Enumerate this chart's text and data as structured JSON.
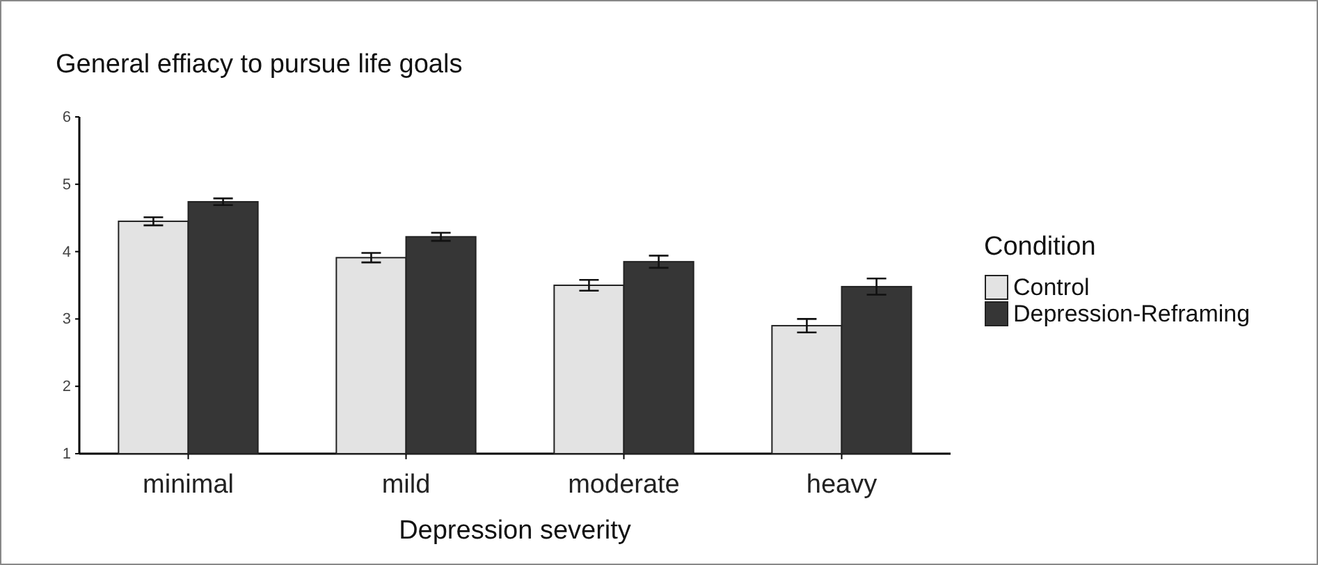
{
  "chart_data": {
    "type": "bar",
    "title": "General effiacy to pursue life goals",
    "xlabel": "Depression severity",
    "legend_title": "Condition",
    "categories": [
      "minimal",
      "mild",
      "moderate",
      "heavy"
    ],
    "series": [
      {
        "name": "Control",
        "color": "#e3e3e3",
        "values": [
          4.45,
          3.91,
          3.5,
          2.9
        ],
        "errors": [
          0.06,
          0.07,
          0.08,
          0.1
        ]
      },
      {
        "name": "Depression-Reframing",
        "color": "#363636",
        "values": [
          4.74,
          4.22,
          3.85,
          3.48
        ],
        "errors": [
          0.05,
          0.06,
          0.09,
          0.12
        ]
      }
    ],
    "ylim": [
      1,
      6
    ],
    "yticks": [
      1,
      2,
      3,
      4,
      5,
      6
    ],
    "grid": false,
    "legend": "right"
  }
}
